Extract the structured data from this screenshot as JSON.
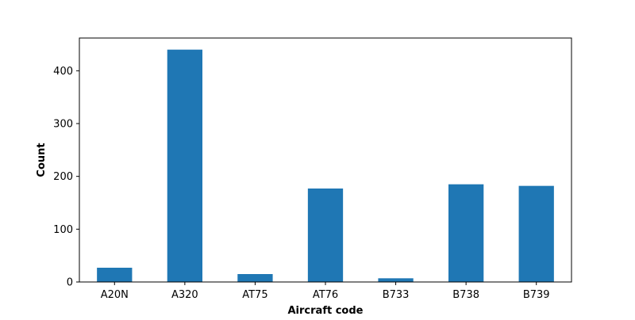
{
  "chart_data": {
    "type": "bar",
    "title": "",
    "xlabel": "Aircraft code",
    "ylabel": "Count",
    "categories": [
      "A20N",
      "A320",
      "AT75",
      "AT76",
      "B733",
      "B738",
      "B739"
    ],
    "values": [
      27,
      440,
      15,
      177,
      7,
      185,
      182
    ],
    "ylim": [
      0,
      462
    ],
    "yticks": [
      0,
      100,
      200,
      300,
      400
    ],
    "bar_color": "#1f77b4",
    "grid": false,
    "legend": "none"
  }
}
